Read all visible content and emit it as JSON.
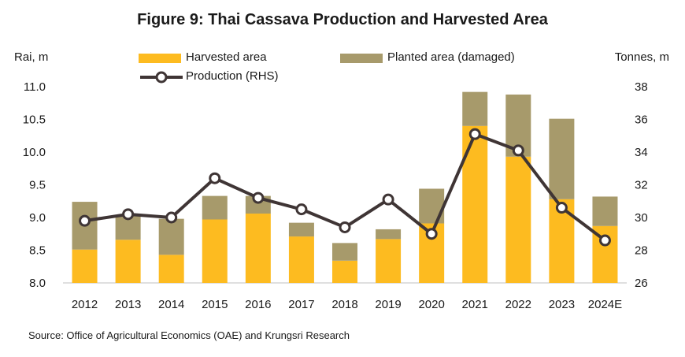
{
  "title": "Figure 9: Thai Cassava Production and Harvested Area",
  "source": "Source: Office of Agricultural Economics (OAE) and Krungsri Research",
  "colors": {
    "harvested": "#FDBB20",
    "damaged": "#A79A6B",
    "production": "#3F3535"
  },
  "chart_data": {
    "type": "bar",
    "categories": [
      "2012",
      "2013",
      "2014",
      "2015",
      "2016",
      "2017",
      "2018",
      "2019",
      "2020",
      "2021",
      "2022",
      "2023",
      "2024E"
    ],
    "series": [
      {
        "name": "Harvested area",
        "axis": "left",
        "stack": "area",
        "values": [
          8.51,
          8.66,
          8.43,
          8.97,
          9.06,
          8.71,
          8.34,
          8.67,
          8.91,
          10.4,
          9.93,
          9.28,
          8.87
        ]
      },
      {
        "name": "Planted area (damaged)",
        "axis": "left",
        "stack": "area",
        "values": [
          0.73,
          0.37,
          0.55,
          0.36,
          0.27,
          0.21,
          0.27,
          0.15,
          0.53,
          0.52,
          0.95,
          1.23,
          0.45
        ]
      },
      {
        "name": "Production (RHS)",
        "type": "line",
        "axis": "right",
        "values": [
          29.8,
          30.2,
          30.0,
          32.4,
          31.2,
          30.5,
          29.4,
          31.1,
          29.0,
          35.1,
          34.1,
          30.6,
          28.6
        ]
      }
    ],
    "ylabel": "Rai, m",
    "y2label": "Tonnes, m",
    "ylim": [
      8.0,
      11.0
    ],
    "y2lim": [
      26,
      38
    ],
    "yticks": [
      "8.0",
      "8.5",
      "9.0",
      "9.5",
      "10.0",
      "10.5",
      "11.0"
    ],
    "y2ticks": [
      "26",
      "28",
      "30",
      "32",
      "34",
      "36",
      "38"
    ],
    "grid": false,
    "legend": "top"
  }
}
